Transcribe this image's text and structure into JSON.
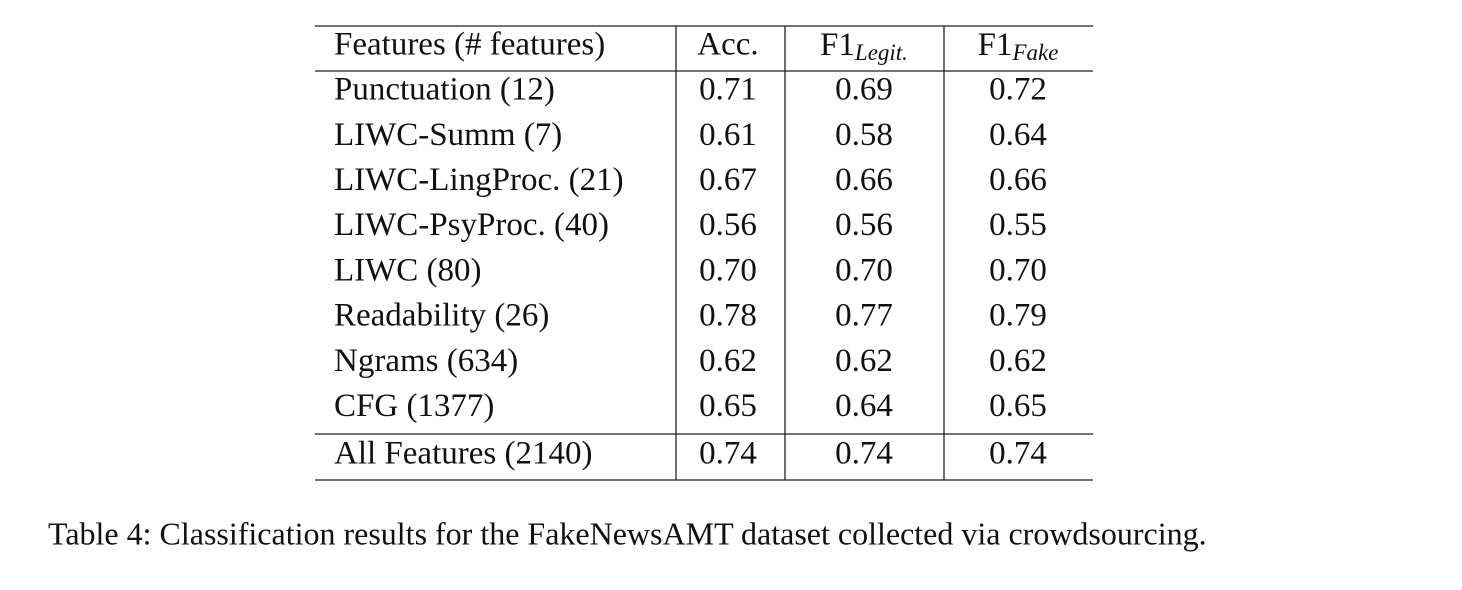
{
  "table": {
    "header": [
      "Features (# features)",
      "Acc.",
      {
        "main": "F1",
        "sub": "Legit."
      },
      {
        "main": "F1",
        "sub": "Fake"
      }
    ],
    "rows": [
      [
        "Punctuation (12)",
        "0.71",
        "0.69",
        "0.72"
      ],
      [
        "LIWC-Summ (7)",
        "0.61",
        "0.58",
        "0.64"
      ],
      [
        "LIWC-LingProc. (21)",
        "0.67",
        "0.66",
        "0.66"
      ],
      [
        "LIWC-PsyProc. (40)",
        "0.56",
        "0.56",
        "0.55"
      ],
      [
        "LIWC (80)",
        "0.70",
        "0.70",
        "0.70"
      ],
      [
        "Readability (26)",
        "0.78",
        "0.77",
        "0.79"
      ],
      [
        "Ngrams (634)",
        "0.62",
        "0.62",
        "0.62"
      ],
      [
        "CFG (1377)",
        "0.65",
        "0.64",
        "0.65"
      ]
    ],
    "total": [
      "All Features (2140)",
      "0.74",
      "0.74",
      "0.74"
    ]
  },
  "caption": "Table 4: Classification results for the FakeNewsAMT dataset collected via crowdsourcing."
}
